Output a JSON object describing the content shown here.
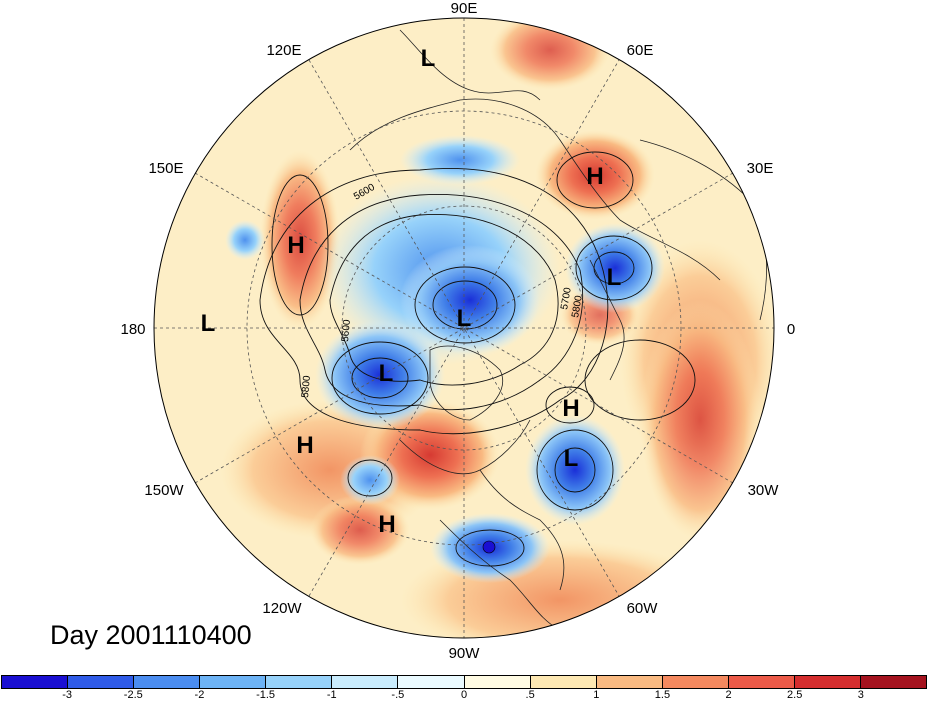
{
  "title": "Day 2001110400",
  "longitude_labels": [
    {
      "key": "lon-90e",
      "text": "90E"
    },
    {
      "key": "lon-60e",
      "text": "60E"
    },
    {
      "key": "lon-120e",
      "text": "120E"
    },
    {
      "key": "lon-150e",
      "text": "150E"
    },
    {
      "key": "lon-30e",
      "text": "30E"
    },
    {
      "key": "lon-180",
      "text": "180"
    },
    {
      "key": "lon-0",
      "text": "0"
    },
    {
      "key": "lon-150w",
      "text": "150W"
    },
    {
      "key": "lon-30w",
      "text": "30W"
    },
    {
      "key": "lon-120w",
      "text": "120W"
    },
    {
      "key": "lon-60w",
      "text": "60W"
    },
    {
      "key": "lon-90w",
      "text": "90W"
    }
  ],
  "pressure_centers": [
    {
      "label": "L",
      "kind": "low"
    },
    {
      "label": "H",
      "kind": "high"
    },
    {
      "label": "H",
      "kind": "high"
    },
    {
      "label": "L",
      "kind": "low"
    },
    {
      "label": "L",
      "kind": "low"
    },
    {
      "label": "L",
      "kind": "low"
    },
    {
      "label": "L",
      "kind": "low"
    },
    {
      "label": "H",
      "kind": "high"
    },
    {
      "label": "H",
      "kind": "high"
    },
    {
      "label": "L",
      "kind": "low"
    },
    {
      "label": "H",
      "kind": "high"
    }
  ],
  "contour_labels": [
    "5600",
    "5800",
    "5600",
    "5700",
    "5800"
  ],
  "colorbar": {
    "colors": [
      "#1a0fd2",
      "#2f5be8",
      "#4b8df0",
      "#6db3f5",
      "#97d2fa",
      "#c9ecfd",
      "#eafaff",
      "#fffbe3",
      "#fde8b3",
      "#f9ba82",
      "#f4895f",
      "#ec5a48",
      "#d42d2e",
      "#a5131f"
    ],
    "tick_labels": [
      "-3",
      "-2.5",
      "-2",
      "-1.5",
      "-1",
      "-.5",
      "0",
      ".5",
      "1",
      "1.5",
      "2",
      "2.5",
      "3"
    ]
  }
}
